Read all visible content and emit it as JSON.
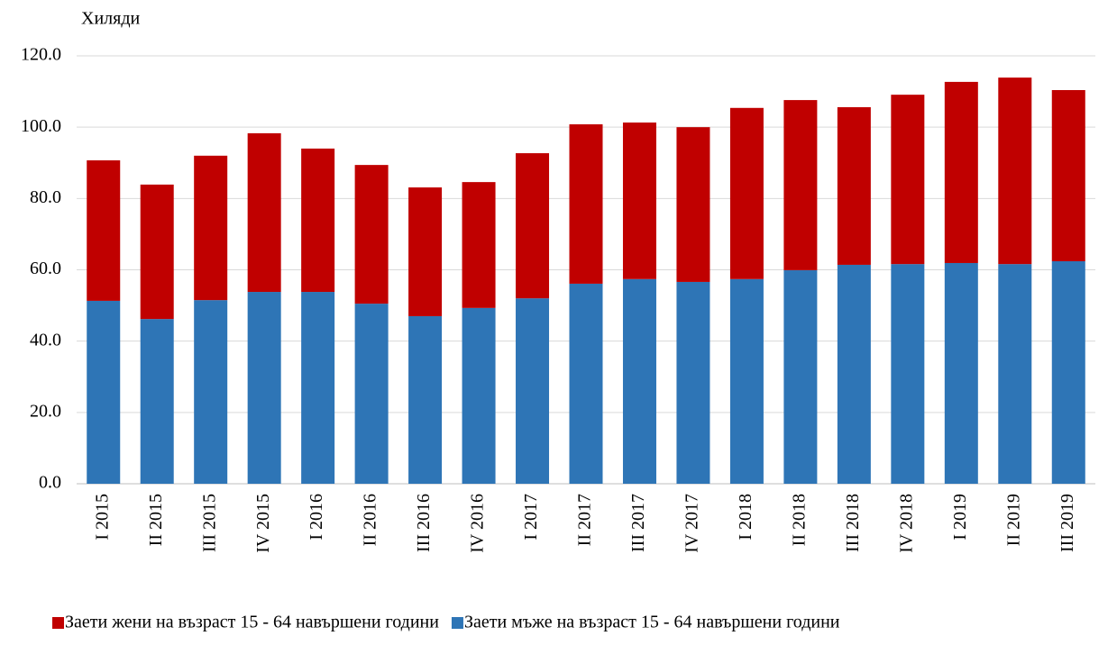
{
  "chart_data": {
    "type": "stacked_bar",
    "y_axis_label": "Хиляди",
    "categories": [
      "I 2015",
      "II 2015",
      "III 2015",
      "IV 2015",
      "I 2016",
      "II 2016",
      "III 2016",
      "IV 2016",
      "I 2017",
      "II 2017",
      "III 2017",
      "IV 2017",
      "I 2018",
      "II 2018",
      "III 2018",
      "IV 2018",
      "I 2019",
      "II 2019",
      "III 2019"
    ],
    "series": [
      {
        "name": "Заети жени на възраст 15 - 64 навършени години",
        "color": "#c00000",
        "values": [
          39.4,
          37.7,
          40.5,
          44.5,
          40.2,
          38.9,
          36.1,
          35.3,
          40.7,
          44.7,
          43.9,
          43.4,
          48.0,
          47.7,
          44.2,
          47.5,
          50.8,
          52.3,
          48.0
        ]
      },
      {
        "name": "Заети мъже на възраст 15 - 64 навършени години",
        "color": "#2e75b6",
        "values": [
          51.3,
          46.2,
          51.5,
          53.8,
          53.8,
          50.5,
          47.0,
          49.3,
          52.0,
          56.1,
          57.4,
          56.6,
          57.4,
          59.9,
          61.4,
          61.6,
          61.9,
          61.6,
          62.4
        ]
      }
    ],
    "ylim": [
      0,
      120
    ],
    "yticks": [
      {
        "value": 0,
        "label": "0.0"
      },
      {
        "value": 20,
        "label": "20.0"
      },
      {
        "value": 40,
        "label": "40.0"
      },
      {
        "value": 60,
        "label": "60.0"
      },
      {
        "value": 80,
        "label": "80.0"
      },
      {
        "value": 100,
        "label": "100.0"
      },
      {
        "value": 120,
        "label": "120.0"
      }
    ],
    "grid": true
  }
}
